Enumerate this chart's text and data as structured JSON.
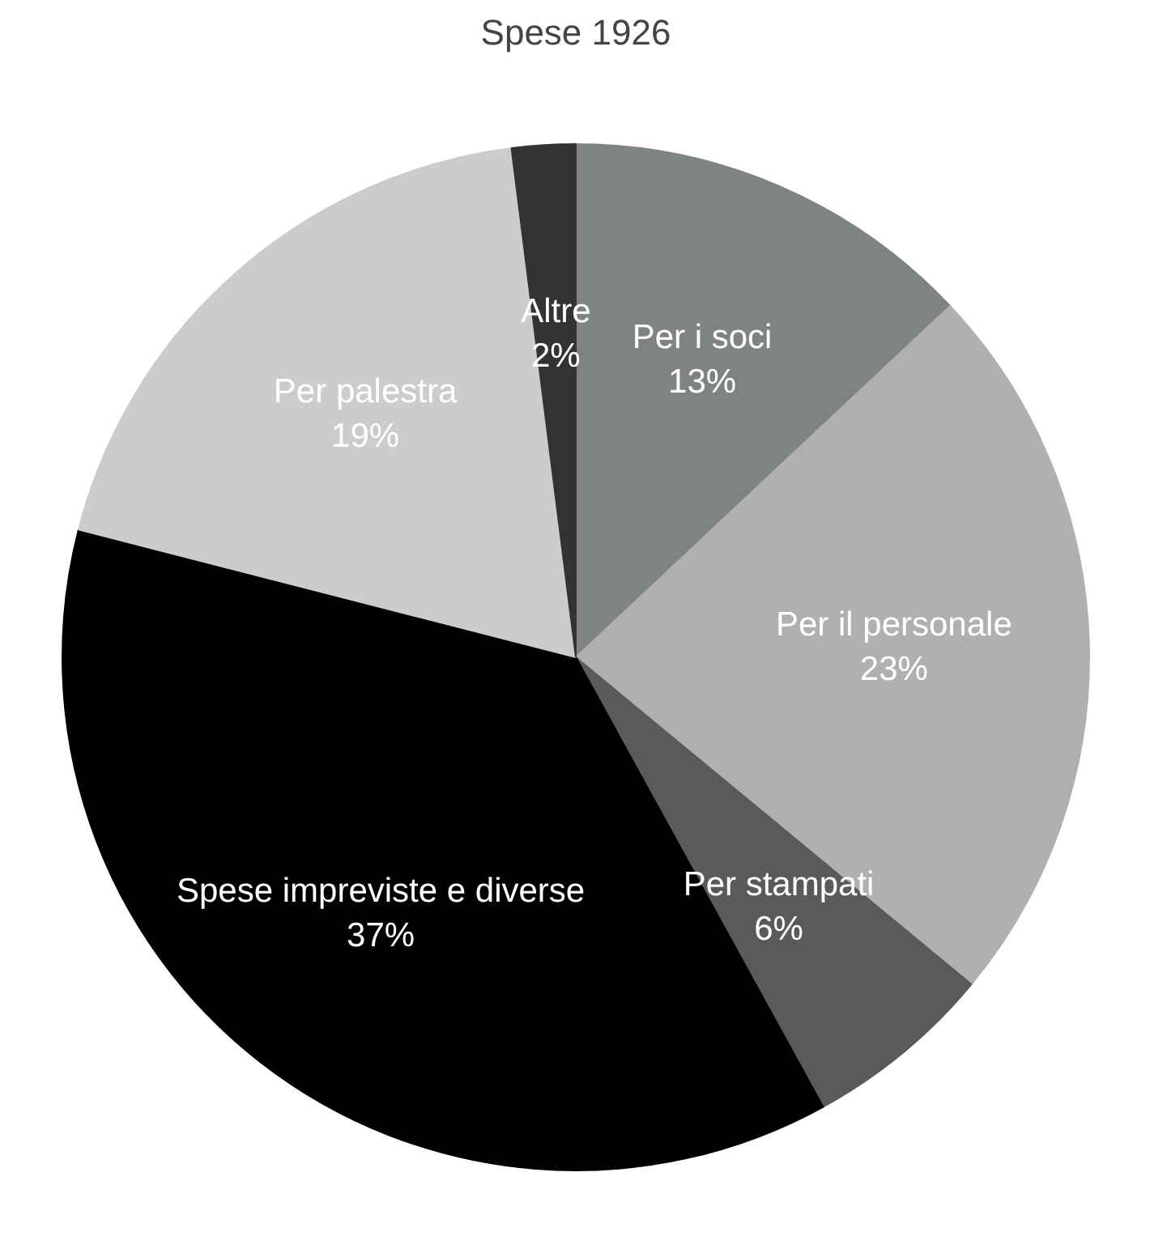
{
  "chart_data": {
    "type": "pie",
    "title": "Spese 1926",
    "categories": [
      "Per i soci",
      "Per il personale",
      "Per stampati",
      "Spese impreviste e diverse",
      "Per palestra",
      "Altre"
    ],
    "values": [
      13,
      23,
      6,
      37,
      19,
      2
    ],
    "colors": [
      "#7f8480",
      "#b0b0b0",
      "#595b5a",
      "#000000",
      "#cccccc",
      "#333333"
    ],
    "value_labels": [
      "13%",
      "23%",
      "6%",
      "37%",
      "19%",
      "2%"
    ]
  }
}
